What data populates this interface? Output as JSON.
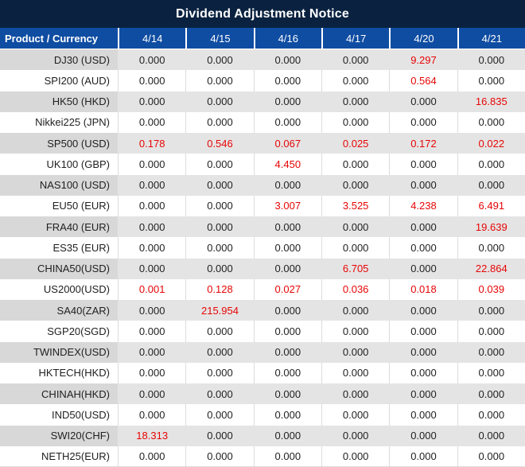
{
  "title": "Dividend Adjustment Notice",
  "colors": {
    "navy": "#0a2240",
    "headerBlue": "#0f4da2",
    "grayDark": "#d8d8d8",
    "grayLight": "#e5e4e4",
    "cellBorder": "#dcdcdc",
    "textDark": "#1f1f1f",
    "red": "#e60505"
  },
  "chart_data": {
    "type": "table",
    "title": "Dividend Adjustment Notice",
    "columns": [
      "Product / Currency",
      "4/14",
      "4/15",
      "4/16",
      "4/17",
      "4/20",
      "4/21"
    ],
    "rows": [
      {
        "product": "DJ30 (USD)",
        "values": [
          "0.000",
          "0.000",
          "0.000",
          "0.000",
          "9.297",
          "0.000"
        ],
        "red": [
          false,
          false,
          false,
          false,
          true,
          false
        ]
      },
      {
        "product": "SPI200 (AUD)",
        "values": [
          "0.000",
          "0.000",
          "0.000",
          "0.000",
          "0.564",
          "0.000"
        ],
        "red": [
          false,
          false,
          false,
          false,
          true,
          false
        ]
      },
      {
        "product": "HK50 (HKD)",
        "values": [
          "0.000",
          "0.000",
          "0.000",
          "0.000",
          "0.000",
          "16.835"
        ],
        "red": [
          false,
          false,
          false,
          false,
          false,
          true
        ]
      },
      {
        "product": "Nikkei225 (JPN)",
        "values": [
          "0.000",
          "0.000",
          "0.000",
          "0.000",
          "0.000",
          "0.000"
        ],
        "red": [
          false,
          false,
          false,
          false,
          false,
          false
        ]
      },
      {
        "product": "SP500 (USD)",
        "values": [
          "0.178",
          "0.546",
          "0.067",
          "0.025",
          "0.172",
          "0.022"
        ],
        "red": [
          true,
          true,
          true,
          true,
          true,
          true
        ]
      },
      {
        "product": "UK100 (GBP)",
        "values": [
          "0.000",
          "0.000",
          "4.450",
          "0.000",
          "0.000",
          "0.000"
        ],
        "red": [
          false,
          false,
          true,
          false,
          false,
          false
        ]
      },
      {
        "product": "NAS100 (USD)",
        "values": [
          "0.000",
          "0.000",
          "0.000",
          "0.000",
          "0.000",
          "0.000"
        ],
        "red": [
          false,
          false,
          false,
          false,
          false,
          false
        ]
      },
      {
        "product": "EU50 (EUR)",
        "values": [
          "0.000",
          "0.000",
          "3.007",
          "3.525",
          "4.238",
          "6.491"
        ],
        "red": [
          false,
          false,
          true,
          true,
          true,
          true
        ]
      },
      {
        "product": "FRA40 (EUR)",
        "values": [
          "0.000",
          "0.000",
          "0.000",
          "0.000",
          "0.000",
          "19.639"
        ],
        "red": [
          false,
          false,
          false,
          false,
          false,
          true
        ]
      },
      {
        "product": "ES35 (EUR)",
        "values": [
          "0.000",
          "0.000",
          "0.000",
          "0.000",
          "0.000",
          "0.000"
        ],
        "red": [
          false,
          false,
          false,
          false,
          false,
          false
        ]
      },
      {
        "product": "CHINA50(USD)",
        "values": [
          "0.000",
          "0.000",
          "0.000",
          "6.705",
          "0.000",
          "22.864"
        ],
        "red": [
          false,
          false,
          false,
          true,
          false,
          true
        ]
      },
      {
        "product": "US2000(USD)",
        "values": [
          "0.001",
          "0.128",
          "0.027",
          "0.036",
          "0.018",
          "0.039"
        ],
        "red": [
          true,
          true,
          true,
          true,
          true,
          true
        ]
      },
      {
        "product": "SA40(ZAR)",
        "values": [
          "0.000",
          "215.954",
          "0.000",
          "0.000",
          "0.000",
          "0.000"
        ],
        "red": [
          false,
          true,
          false,
          false,
          false,
          false
        ]
      },
      {
        "product": "SGP20(SGD)",
        "values": [
          "0.000",
          "0.000",
          "0.000",
          "0.000",
          "0.000",
          "0.000"
        ],
        "red": [
          false,
          false,
          false,
          false,
          false,
          false
        ]
      },
      {
        "product": "TWINDEX(USD)",
        "values": [
          "0.000",
          "0.000",
          "0.000",
          "0.000",
          "0.000",
          "0.000"
        ],
        "red": [
          false,
          false,
          false,
          false,
          false,
          false
        ]
      },
      {
        "product": "HKTECH(HKD)",
        "values": [
          "0.000",
          "0.000",
          "0.000",
          "0.000",
          "0.000",
          "0.000"
        ],
        "red": [
          false,
          false,
          false,
          false,
          false,
          false
        ]
      },
      {
        "product": "CHINAH(HKD)",
        "values": [
          "0.000",
          "0.000",
          "0.000",
          "0.000",
          "0.000",
          "0.000"
        ],
        "red": [
          false,
          false,
          false,
          false,
          false,
          false
        ]
      },
      {
        "product": "IND50(USD)",
        "values": [
          "0.000",
          "0.000",
          "0.000",
          "0.000",
          "0.000",
          "0.000"
        ],
        "red": [
          false,
          false,
          false,
          false,
          false,
          false
        ]
      },
      {
        "product": "SWI20(CHF)",
        "values": [
          "18.313",
          "0.000",
          "0.000",
          "0.000",
          "0.000",
          "0.000"
        ],
        "red": [
          true,
          false,
          false,
          false,
          false,
          false
        ]
      },
      {
        "product": "NETH25(EUR)",
        "values": [
          "0.000",
          "0.000",
          "0.000",
          "0.000",
          "0.000",
          "0.000"
        ],
        "red": [
          false,
          false,
          false,
          false,
          false,
          false
        ]
      }
    ]
  }
}
